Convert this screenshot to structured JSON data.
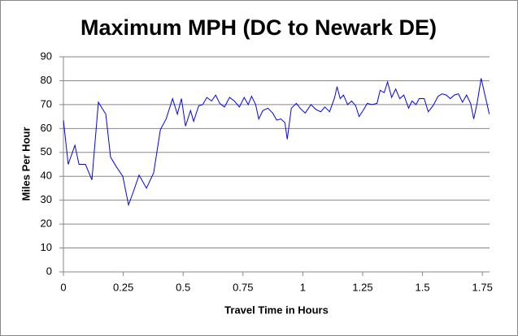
{
  "chart_data": {
    "type": "line",
    "title": "Maximum MPH (DC to Newark DE)",
    "xlabel": "Travel Time in Hours",
    "ylabel": "Miles Per Hour",
    "x": [
      0,
      0.02,
      0.048,
      0.065,
      0.092,
      0.119,
      0.146,
      0.177,
      0.197,
      0.221,
      0.248,
      0.272,
      0.292,
      0.316,
      0.347,
      0.377,
      0.405,
      0.429,
      0.456,
      0.476,
      0.493,
      0.51,
      0.531,
      0.544,
      0.565,
      0.582,
      0.599,
      0.619,
      0.636,
      0.653,
      0.673,
      0.694,
      0.714,
      0.735,
      0.755,
      0.772,
      0.786,
      0.803,
      0.816,
      0.833,
      0.854,
      0.874,
      0.891,
      0.908,
      0.925,
      0.935,
      0.952,
      0.973,
      0.993,
      1.01,
      1.034,
      1.054,
      1.075,
      1.092,
      1.112,
      1.133,
      1.143,
      1.156,
      1.17,
      1.187,
      1.204,
      1.221,
      1.235,
      1.255,
      1.269,
      1.289,
      1.31,
      1.323,
      1.34,
      1.354,
      1.371,
      1.388,
      1.405,
      1.422,
      1.442,
      1.456,
      1.473,
      1.486,
      1.507,
      1.524,
      1.544,
      1.565,
      1.582,
      1.599,
      1.616,
      1.633,
      1.65,
      1.667,
      1.684,
      1.701,
      1.714,
      1.728,
      1.745,
      1.762,
      1.779
    ],
    "series": [
      {
        "name": "Maximum MPH",
        "color": "#0000ff",
        "values": [
          63.5,
          45,
          53,
          45,
          45,
          38.5,
          71,
          66,
          48,
          44,
          40,
          28,
          33.5,
          40.5,
          35,
          41.5,
          59.5,
          64,
          72.5,
          66,
          72.5,
          61,
          67.5,
          63,
          69.5,
          70,
          73,
          71.5,
          74,
          70.5,
          69,
          73,
          71.5,
          69,
          73,
          70,
          73.5,
          70,
          64,
          67.5,
          68.5,
          66.5,
          63.5,
          64,
          62.5,
          55.5,
          68.5,
          70.5,
          68,
          66.5,
          70,
          68,
          67,
          69,
          67,
          73,
          77.5,
          72.5,
          74,
          70,
          71.5,
          69.5,
          65,
          68,
          70.5,
          70,
          70.5,
          76,
          75,
          79.5,
          73,
          76.5,
          72.5,
          74,
          68.5,
          71.5,
          70,
          72.5,
          72.5,
          67,
          69.5,
          73.5,
          74.5,
          74,
          72.5,
          74,
          74.5,
          71,
          74,
          70.5,
          64,
          70.5,
          81,
          73.5,
          66
        ]
      }
    ],
    "xlim": [
      0,
      1.78
    ],
    "xticks": [
      0,
      0.25,
      0.5,
      0.75,
      1,
      1.25,
      1.5,
      1.75
    ],
    "ylim": [
      0,
      90
    ],
    "yticks": [
      0,
      10,
      20,
      30,
      40,
      50,
      60,
      70,
      80,
      90
    ],
    "grid": true
  }
}
